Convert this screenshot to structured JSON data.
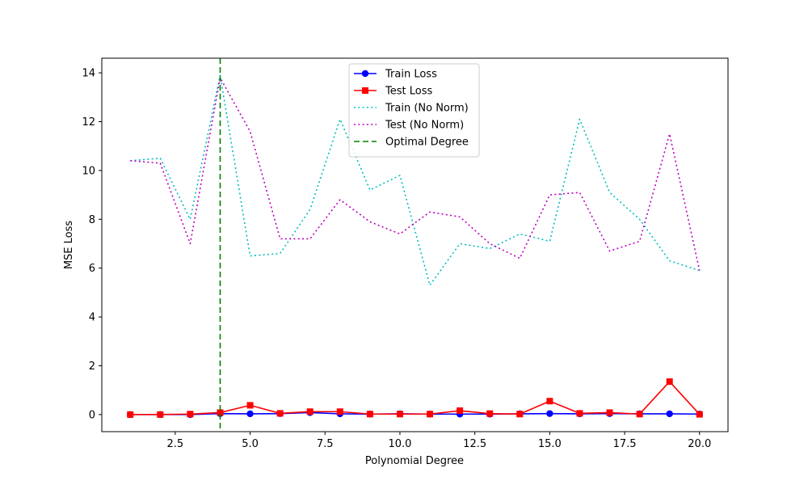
{
  "chart_data": {
    "type": "line",
    "xlabel": "Polynomial Degree",
    "ylabel": "MSE Loss",
    "xlim": [
      0.05,
      20.95
    ],
    "ylim": [
      -0.7,
      14.6
    ],
    "x_ticks": [
      2.5,
      5.0,
      7.5,
      10.0,
      12.5,
      15.0,
      17.5,
      20.0
    ],
    "x_tick_labels": [
      "2.5",
      "5.0",
      "7.5",
      "10.0",
      "12.5",
      "15.0",
      "17.5",
      "20.0"
    ],
    "y_ticks": [
      0,
      2,
      4,
      6,
      8,
      10,
      12,
      14
    ],
    "y_tick_labels": [
      "0",
      "2",
      "4",
      "6",
      "8",
      "10",
      "12",
      "14"
    ],
    "x": [
      1,
      2,
      3,
      4,
      5,
      6,
      7,
      8,
      9,
      10,
      11,
      12,
      13,
      14,
      15,
      16,
      17,
      18,
      19,
      20
    ],
    "grid": false,
    "legend_position": "top-center",
    "series": [
      {
        "name": "Train Loss",
        "color": "#0000ff",
        "style": "solid",
        "marker": "circle",
        "values": [
          0.0,
          0.0,
          0.0,
          0.04,
          0.03,
          0.04,
          0.08,
          0.03,
          0.02,
          0.03,
          0.02,
          0.02,
          0.02,
          0.03,
          0.04,
          0.03,
          0.04,
          0.03,
          0.03,
          0.02
        ]
      },
      {
        "name": "Test Loss",
        "color": "#ff0000",
        "style": "solid",
        "marker": "square",
        "values": [
          0.0,
          0.0,
          0.02,
          0.08,
          0.38,
          0.05,
          0.12,
          0.12,
          0.02,
          0.02,
          0.02,
          0.16,
          0.04,
          0.02,
          0.55,
          0.05,
          0.08,
          0.02,
          1.35,
          0.01
        ]
      },
      {
        "name": "Train (No Norm)",
        "color": "#00bfbf",
        "style": "dotted",
        "marker": "none",
        "values": [
          10.4,
          10.5,
          8.0,
          13.9,
          6.5,
          6.6,
          8.4,
          12.1,
          9.2,
          9.8,
          5.3,
          7.0,
          6.8,
          7.4,
          7.1,
          12.1,
          9.1,
          8.0,
          6.3,
          5.9
        ]
      },
      {
        "name": "Test (No Norm)",
        "color": "#bf00bf",
        "style": "dotted",
        "marker": "none",
        "values": [
          10.4,
          10.3,
          7.0,
          13.8,
          11.6,
          7.2,
          7.2,
          8.8,
          7.9,
          7.4,
          8.3,
          8.1,
          7.0,
          6.4,
          9.0,
          9.1,
          6.7,
          7.1,
          11.5,
          5.9
        ]
      }
    ],
    "vline": {
      "name": "Optimal Degree",
      "x": 4,
      "color": "#008000",
      "style": "dashed"
    }
  }
}
